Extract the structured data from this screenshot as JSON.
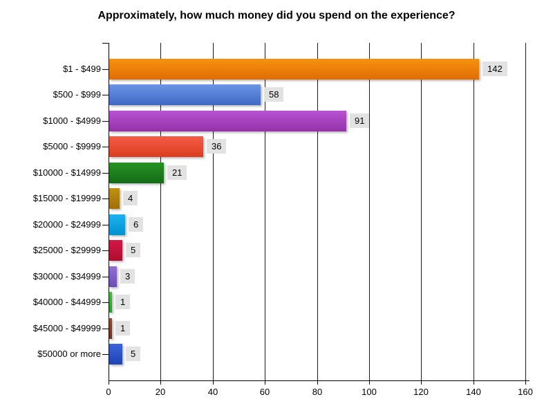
{
  "chart_data": {
    "type": "bar",
    "orientation": "horizontal",
    "title": "Approximately, how much money did you spend on the experience?",
    "categories": [
      "$1 - $499",
      "$500 - $999",
      "$1000 - $4999",
      "$5000 - $9999",
      "$10000 - $14999",
      "$15000 - $19999",
      "$20000 - $24999",
      "$25000 - $29999",
      "$30000 - $34999",
      "$40000 - $44999",
      "$45000 - $49999",
      "$50000 or more"
    ],
    "values": [
      142,
      58,
      91,
      36,
      21,
      4,
      6,
      5,
      3,
      1,
      1,
      5
    ],
    "bar_colors": [
      {
        "top": "#F6920F",
        "bottom": "#E06C02"
      },
      {
        "top": "#6C95E6",
        "bottom": "#3E69C4"
      },
      {
        "top": "#B853D2",
        "bottom": "#9531A8"
      },
      {
        "top": "#F65C45",
        "bottom": "#DA3D21"
      },
      {
        "top": "#259425",
        "bottom": "#156A15"
      },
      {
        "top": "#C39110",
        "bottom": "#9C6F08"
      },
      {
        "top": "#1CB2EE",
        "bottom": "#0292CE"
      },
      {
        "top": "#D41747",
        "bottom": "#AE0D2F"
      },
      {
        "top": "#9271D2",
        "bottom": "#6C4CB6"
      },
      {
        "top": "#3DC43D",
        "bottom": "#23A023"
      },
      {
        "top": "#9C4C2C",
        "bottom": "#763019"
      },
      {
        "top": "#3864DA",
        "bottom": "#1F44B4"
      }
    ],
    "xlabel": "",
    "ylabel": "",
    "xlim": [
      0,
      160
    ],
    "x_ticks": [
      0,
      20,
      40,
      60,
      80,
      100,
      120,
      140,
      160
    ],
    "grid": "vertical",
    "value_labels_shown": true
  },
  "styles": {
    "value_badge_bg": "#E2E2E2",
    "axis_color": "#000000",
    "grid_color": "#1A1A1A",
    "text_color": "#000000",
    "background": "#FFFFFF"
  }
}
